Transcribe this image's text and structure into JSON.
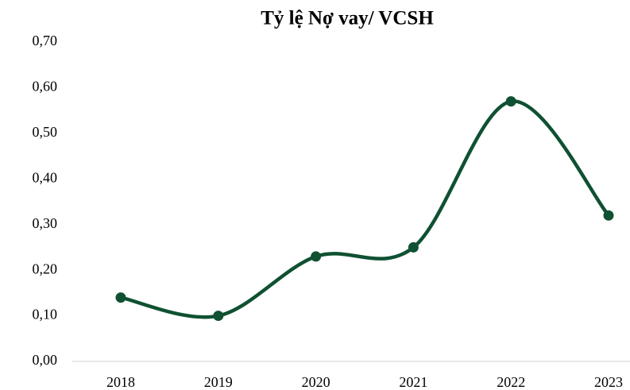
{
  "chart_data": {
    "type": "line",
    "title": "Tỷ lệ Nợ vay/ VCSH",
    "categories": [
      "2018",
      "2019",
      "2020",
      "2021",
      "2022",
      "2023"
    ],
    "series": [
      {
        "name": "Tỷ lệ Nợ vay/ VCSH",
        "color": "#0f5132",
        "values": [
          0.14,
          0.1,
          0.23,
          0.25,
          0.57,
          0.32
        ]
      }
    ],
    "ylim": [
      0,
      0.7
    ],
    "yticks": [
      {
        "value": 0,
        "label": "0,00"
      },
      {
        "value": 0.1,
        "label": "0,10"
      },
      {
        "value": 0.2,
        "label": "0,20"
      },
      {
        "value": 0.3,
        "label": "0,30"
      },
      {
        "value": 0.4,
        "label": "0,40"
      },
      {
        "value": 0.5,
        "label": "0,50"
      },
      {
        "value": 0.6,
        "label": "0,60"
      },
      {
        "value": 0.7,
        "label": "0,70"
      }
    ],
    "smooth": true
  }
}
